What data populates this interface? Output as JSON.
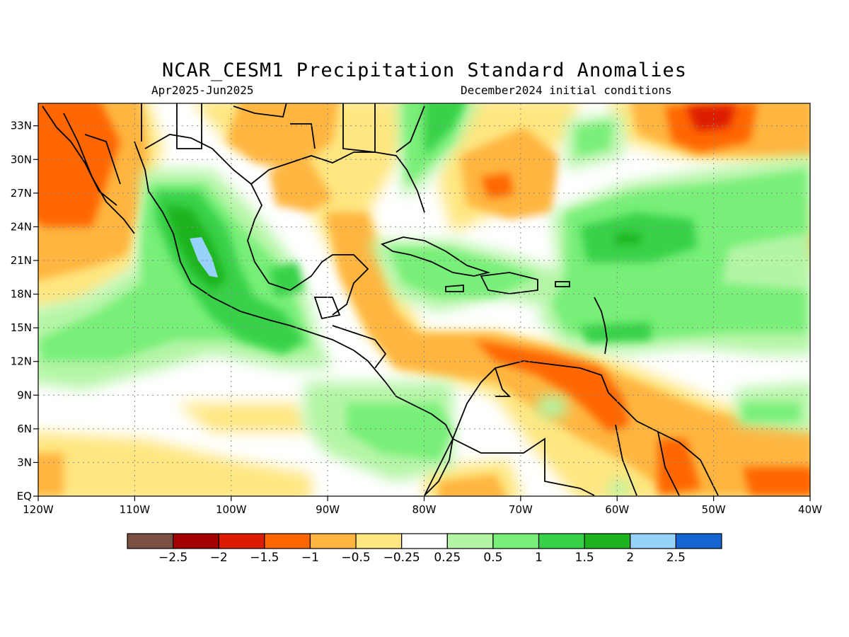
{
  "title": "NCAR_CESM1 Precipitation Standard Anomalies",
  "subtitle_left": "Apr2025-Jun2025",
  "subtitle_right": "December2024 initial conditions",
  "map": {
    "lon_range": [
      -120,
      -40
    ],
    "lat_range": [
      0,
      35
    ],
    "lon_ticks": [
      "120W",
      "110W",
      "100W",
      "90W",
      "80W",
      "70W",
      "60W",
      "50W",
      "40W"
    ],
    "lat_ticks": [
      "EQ",
      "3N",
      "6N",
      "9N",
      "12N",
      "15N",
      "18N",
      "21N",
      "24N",
      "27N",
      "30N",
      "33N"
    ],
    "grid": "dotted"
  },
  "colorbar": {
    "colors": [
      "#7a5043",
      "#a50000",
      "#dc1b00",
      "#ff6600",
      "#ffb540",
      "#ffe680",
      "#ffffff",
      "#b4f5a5",
      "#78ef78",
      "#38d14a",
      "#1eb31e",
      "#96d2fa",
      "#1464d2"
    ],
    "labels": [
      "−2.5",
      "−2",
      "−1.5",
      "−1",
      "−0.5",
      "−0.25",
      "0.25",
      "0.5",
      "1",
      "1.5",
      "2",
      "2.5"
    ]
  }
}
